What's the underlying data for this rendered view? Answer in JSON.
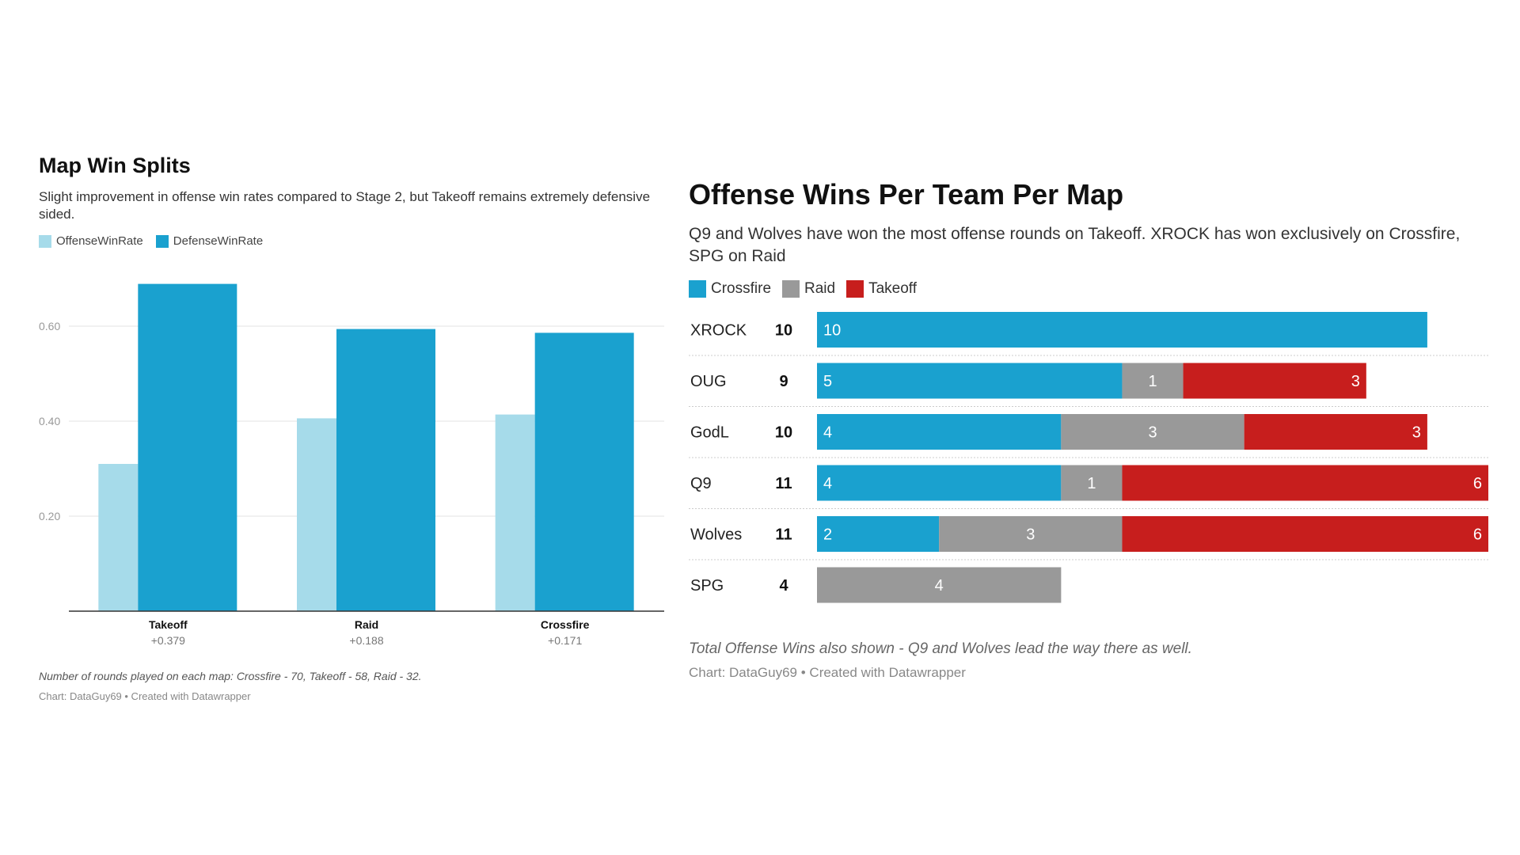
{
  "chart_data": [
    {
      "type": "bar",
      "title": "Map Win Splits",
      "subtitle": "Slight improvement in offense win rates compared to Stage 2, but Takeoff remains extremely defensive sided.",
      "categories": [
        "Takeoff",
        "Raid",
        "Crossfire"
      ],
      "category_sublabels": [
        "+0.379",
        "+0.188",
        "+0.171"
      ],
      "series": [
        {
          "name": "OffenseWinRate",
          "color": "#a6dbea",
          "values": [
            0.31,
            0.406,
            0.414
          ]
        },
        {
          "name": "DefenseWinRate",
          "color": "#1aa1cf",
          "values": [
            0.689,
            0.594,
            0.586
          ]
        }
      ],
      "yticks": [
        "0.20",
        "0.40",
        "0.60"
      ],
      "ylim": [
        0,
        0.7
      ],
      "grid": true,
      "legend_position": "top-left",
      "notes": "Number of rounds played on each map: Crossfire - 70, Takeoff - 58, Raid - 32.",
      "credit": "Chart: DataGuy69 • Created with Datawrapper"
    },
    {
      "type": "bar",
      "orientation": "horizontal-stacked",
      "title": "Offense Wins Per Team Per Map",
      "subtitle": "Q9 and Wolves have won the most offense rounds on Takeoff. XROCK has won exclusively on Crossfire, SPG on Raid",
      "categories": [
        "XROCK",
        "OUG",
        "GodL",
        "Q9",
        "Wolves",
        "SPG"
      ],
      "totals": [
        "10",
        "9",
        "10",
        "11",
        "11",
        "4"
      ],
      "series": [
        {
          "name": "Crossfire",
          "color": "#1aa1cf",
          "values": [
            10,
            5,
            4,
            4,
            2,
            0
          ]
        },
        {
          "name": "Raid",
          "color": "#999999",
          "values": [
            0,
            1,
            3,
            1,
            3,
            4
          ]
        },
        {
          "name": "Takeoff",
          "color": "#c71e1d",
          "values": [
            0,
            3,
            3,
            6,
            6,
            0
          ]
        }
      ],
      "xlim": [
        0,
        11
      ],
      "legend_position": "top-left",
      "notes": "Total Offense Wins also shown - Q9 and Wolves lead the way there as well.",
      "credit": "Chart: DataGuy69 • Created with Datawrapper"
    }
  ]
}
